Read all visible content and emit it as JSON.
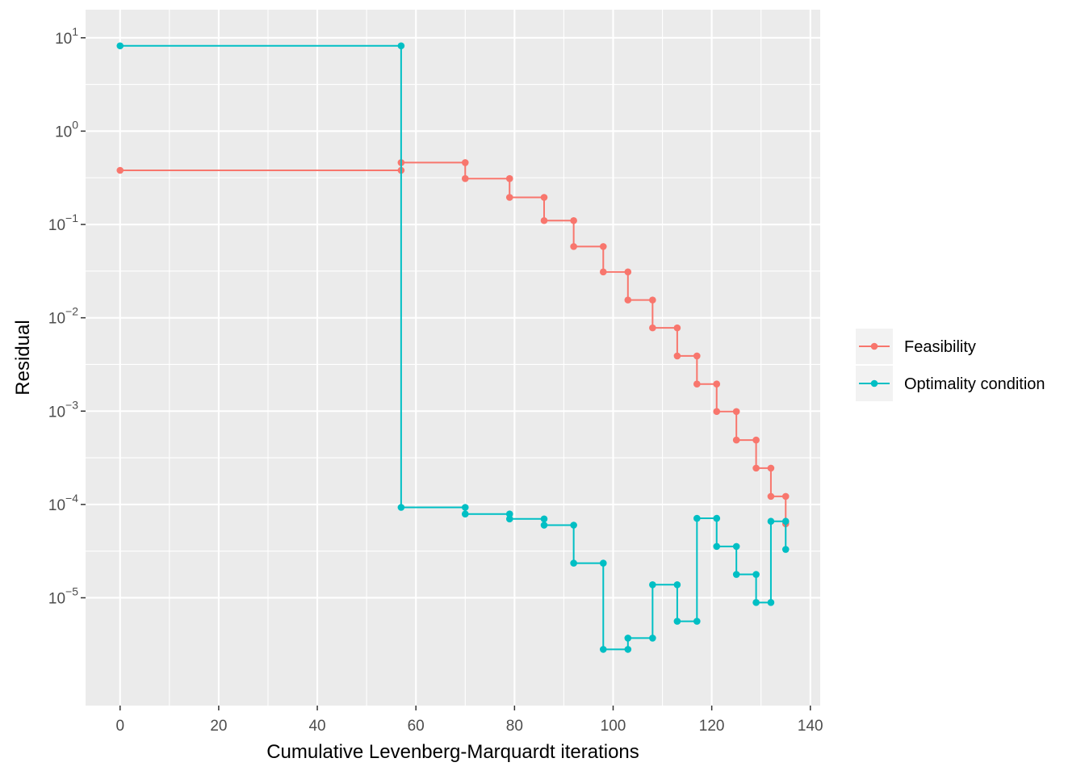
{
  "chart_data": {
    "type": "line",
    "subtype": "step-with-points",
    "xlabel": "Cumulative Levenberg-Marquardt iterations",
    "ylabel": "Residual",
    "xlim": [
      -7,
      142
    ],
    "ylim": [
      7e-07,
      20
    ],
    "y_scale": "log10",
    "x_ticks": [
      0,
      20,
      40,
      60,
      80,
      100,
      120,
      140
    ],
    "y_tick_labels": [
      {
        "base": "10",
        "exp": "1"
      },
      {
        "base": "10",
        "exp": "0"
      },
      {
        "base": "10",
        "exp": "−1"
      },
      {
        "base": "10",
        "exp": "−2"
      },
      {
        "base": "10",
        "exp": "−3"
      },
      {
        "base": "10",
        "exp": "−4"
      },
      {
        "base": "10",
        "exp": "−5"
      }
    ],
    "y_tick_values": [
      10,
      1,
      0.1,
      0.01,
      0.001,
      0.0001,
      1e-05
    ],
    "grid": true,
    "legend_position": "right",
    "series": [
      {
        "name": "Feasibility",
        "color": "#F8766D",
        "points": [
          [
            0,
            0.38
          ],
          [
            57,
            0.38
          ],
          [
            57,
            0.46
          ],
          [
            70,
            0.46
          ],
          [
            70,
            0.31
          ],
          [
            79,
            0.31
          ],
          [
            79,
            0.195
          ],
          [
            86,
            0.195
          ],
          [
            86,
            0.11
          ],
          [
            92,
            0.11
          ],
          [
            92,
            0.058
          ],
          [
            98,
            0.058
          ],
          [
            98,
            0.031
          ],
          [
            103,
            0.031
          ],
          [
            103,
            0.0155
          ],
          [
            108,
            0.0155
          ],
          [
            108,
            0.0078
          ],
          [
            113,
            0.0078
          ],
          [
            113,
            0.0039
          ],
          [
            117,
            0.0039
          ],
          [
            117,
            0.00195
          ],
          [
            121,
            0.00195
          ],
          [
            121,
            0.00099
          ],
          [
            125,
            0.00099
          ],
          [
            125,
            0.00049
          ],
          [
            129,
            0.00049
          ],
          [
            129,
            0.000245
          ],
          [
            132,
            0.000245
          ],
          [
            132,
            0.000122
          ],
          [
            135,
            0.000122
          ],
          [
            135,
            6.2e-05
          ]
        ]
      },
      {
        "name": "Optimality condition",
        "color": "#00BFC4",
        "points": [
          [
            0,
            8.2
          ],
          [
            57,
            8.2
          ],
          [
            57,
            9.3e-05
          ],
          [
            70,
            9.3e-05
          ],
          [
            70,
            7.9e-05
          ],
          [
            79,
            7.9e-05
          ],
          [
            79,
            7e-05
          ],
          [
            86,
            7e-05
          ],
          [
            86,
            6e-05
          ],
          [
            92,
            6e-05
          ],
          [
            92,
            2.35e-05
          ],
          [
            98,
            2.35e-05
          ],
          [
            98,
            2.8e-06
          ],
          [
            103,
            2.8e-06
          ],
          [
            103,
            3.7e-06
          ],
          [
            108,
            3.7e-06
          ],
          [
            108,
            1.38e-05
          ],
          [
            113,
            1.38e-05
          ],
          [
            113,
            5.6e-06
          ],
          [
            117,
            5.6e-06
          ],
          [
            117,
            7.1e-05
          ],
          [
            121,
            7.1e-05
          ],
          [
            121,
            3.55e-05
          ],
          [
            125,
            3.55e-05
          ],
          [
            125,
            1.78e-05
          ],
          [
            129,
            1.78e-05
          ],
          [
            129,
            8.9e-06
          ],
          [
            132,
            8.9e-06
          ],
          [
            132,
            6.6e-05
          ],
          [
            135,
            6.6e-05
          ],
          [
            135,
            3.3e-05
          ]
        ]
      }
    ]
  }
}
